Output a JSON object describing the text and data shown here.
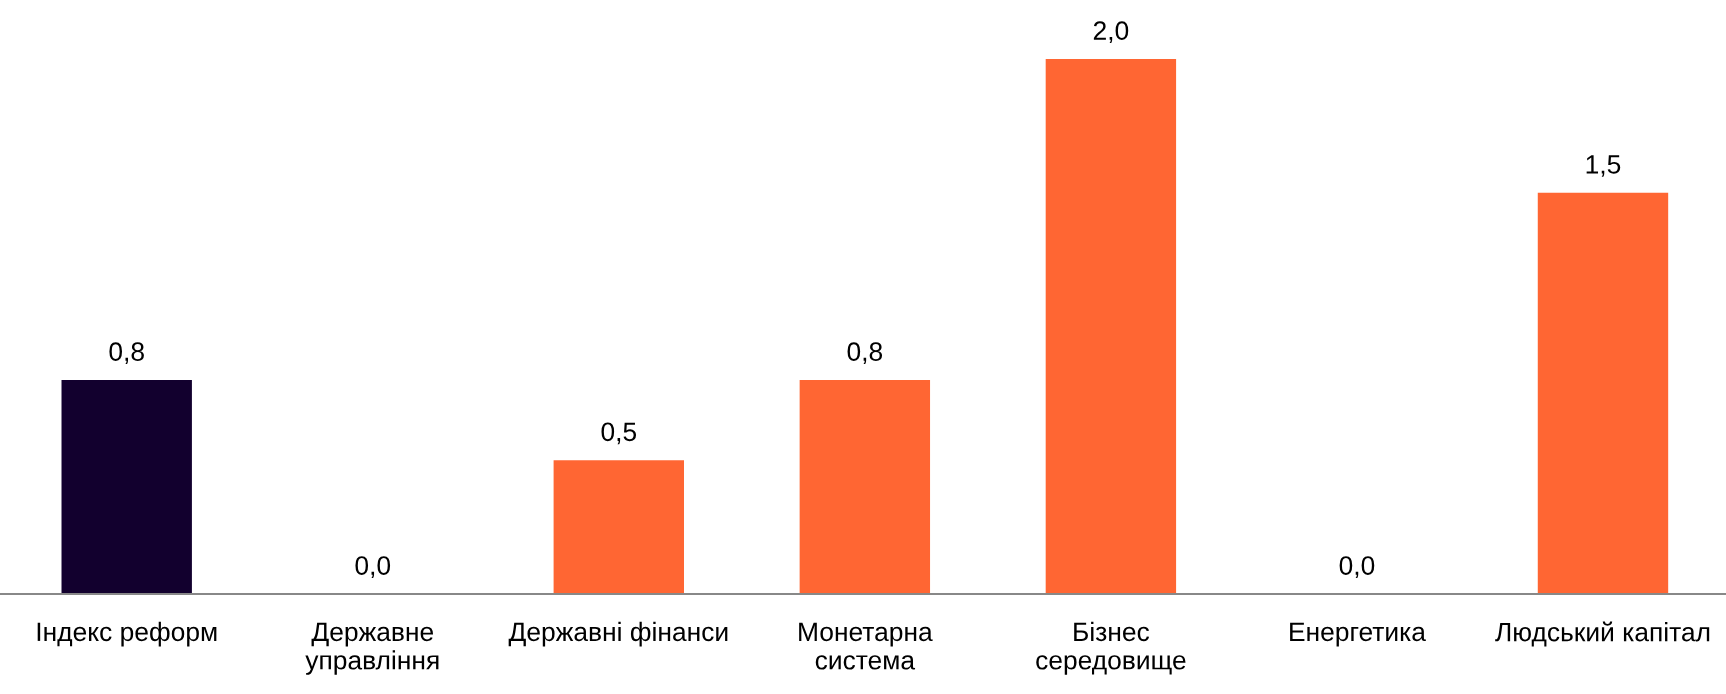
{
  "chart_data": {
    "type": "bar",
    "categories": [
      "Індекс реформ",
      "Державне\nуправління",
      "Державні фінанси",
      "Монетарна\nсистема",
      "Бізнес\nсередовище",
      "Енергетика",
      "Людський капітал"
    ],
    "values": [
      0.8,
      0.0,
      0.5,
      0.8,
      2.0,
      0.0,
      1.5
    ],
    "value_labels": [
      "0,8",
      "0,0",
      "0,5",
      "0,8",
      "2,0",
      "0,0",
      "1,5"
    ],
    "colors": [
      "#12002e",
      "#ff6633",
      "#ff6633",
      "#ff6633",
      "#ff6633",
      "#ff6633",
      "#ff6633"
    ],
    "grid": false,
    "legend": false
  }
}
